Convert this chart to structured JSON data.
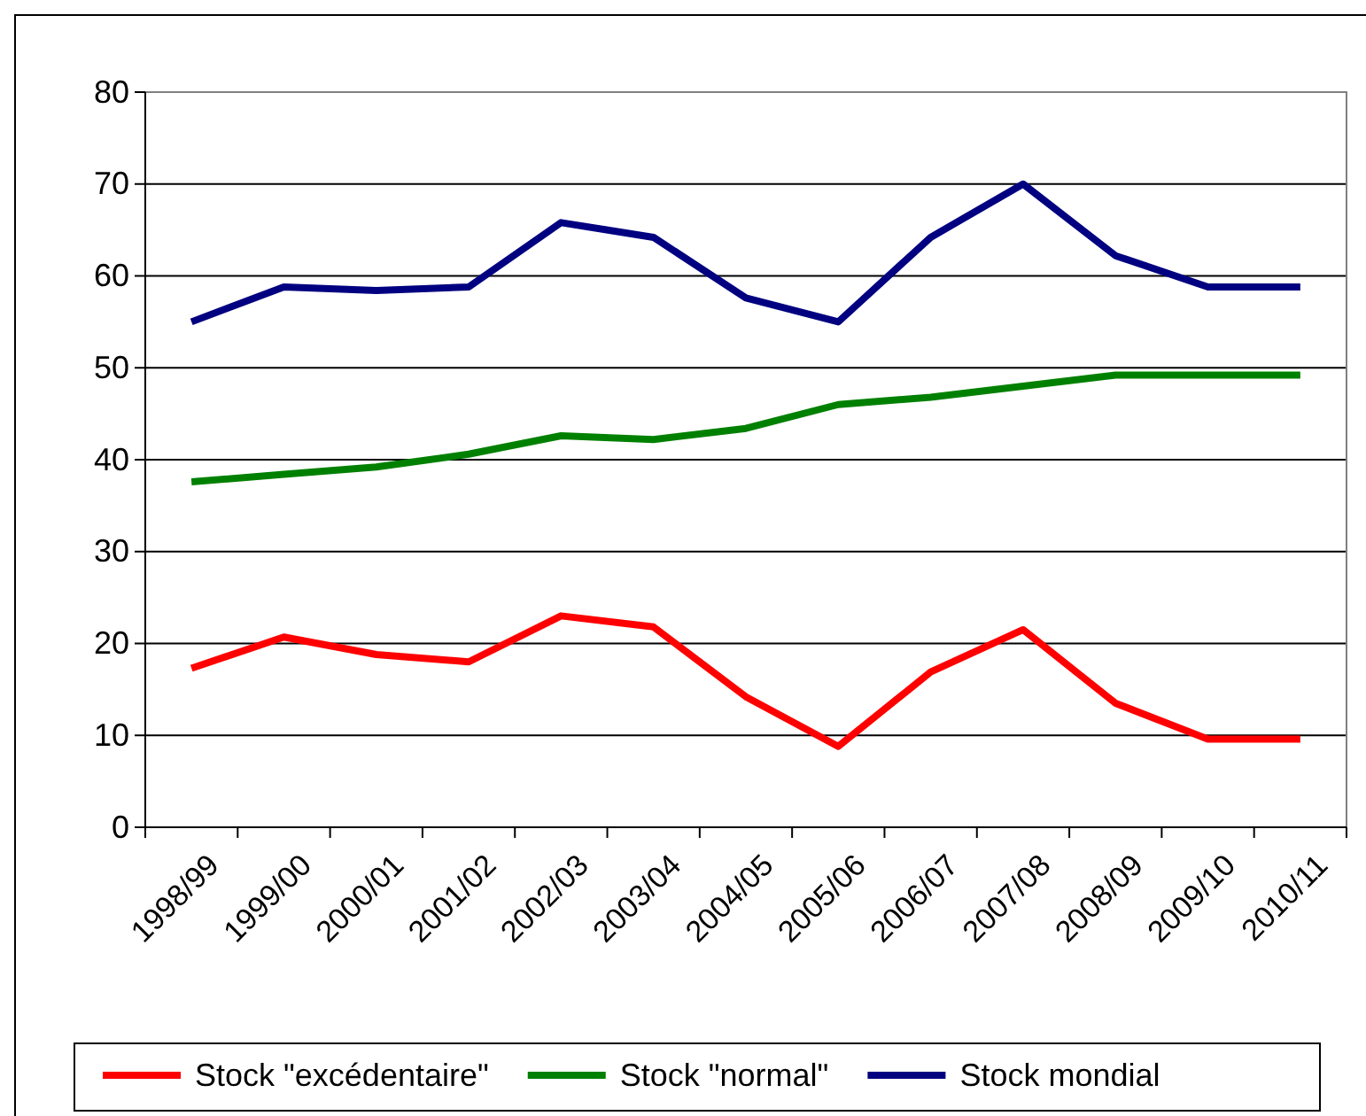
{
  "chart_data": {
    "type": "line",
    "categories": [
      "1998/99",
      "1999/00",
      "2000/01",
      "2001/02",
      "2002/03",
      "2003/04",
      "2004/05",
      "2005/06",
      "2006/07",
      "2007/08",
      "2008/09",
      "2009/10",
      "2010/11"
    ],
    "series": [
      {
        "name": "Stock \"excédentaire\"",
        "color": "#ff0000",
        "values": [
          17.3,
          20.7,
          18.8,
          18,
          23,
          21.8,
          14.2,
          8.8,
          16.9,
          21.5,
          13.5,
          9.6,
          9.6
        ]
      },
      {
        "name": "Stock \"normal\"",
        "color": "#008000",
        "values": [
          37.6,
          38.4,
          39.2,
          40.6,
          42.6,
          42.2,
          43.4,
          46,
          46.8,
          48,
          49.2,
          49.2,
          49.2
        ]
      },
      {
        "name": "Stock mondial",
        "color": "#000080",
        "values": [
          55,
          58.8,
          58.4,
          58.8,
          65.8,
          64.2,
          57.6,
          55,
          64.2,
          70,
          62.2,
          58.8,
          58.8
        ]
      }
    ],
    "ylim": [
      0,
      80
    ],
    "yticks": [
      0,
      10,
      20,
      30,
      40,
      50,
      60,
      70,
      80
    ],
    "grid": "y",
    "legend": "bottom",
    "marker": "none",
    "line_style": "solid"
  }
}
